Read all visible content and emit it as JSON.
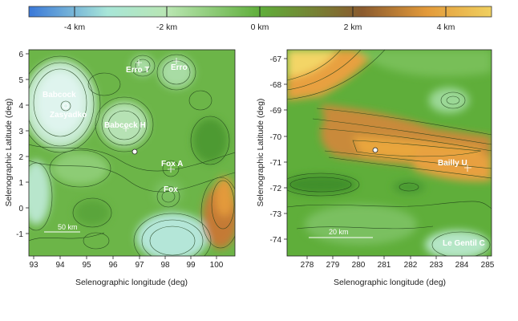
{
  "colorbar": {
    "colors": [
      "#3a78d8",
      "#a8e6d8",
      "#b9e6b2",
      "#5fae3a",
      "#8a5a2e",
      "#e39a3a",
      "#f0d060"
    ],
    "labels": [
      "-4 km",
      "-2 km",
      "0 km",
      "2 km",
      "4 km"
    ]
  },
  "left_map": {
    "xlabel": "Selenographic longitude (deg)",
    "ylabel": "Selenographic Latitude (deg)",
    "xticks": [
      "93",
      "94",
      "95",
      "96",
      "97",
      "98",
      "99",
      "100"
    ],
    "yticks": [
      "6",
      "5",
      "4",
      "3",
      "2",
      "1",
      "0",
      "-1"
    ],
    "features": [
      {
        "name": "Babcock",
        "label": "Babcock"
      },
      {
        "name": "Zasyadko",
        "label": "Zasyadko"
      },
      {
        "name": "Babcock H",
        "label": "Babcock H"
      },
      {
        "name": "Erro T",
        "label": "Erro T"
      },
      {
        "name": "Erro",
        "label": "Erro"
      },
      {
        "name": "Fox A",
        "label": "Fox A"
      },
      {
        "name": "Fox",
        "label": "Fox"
      }
    ],
    "scalebar": "50 km"
  },
  "right_map": {
    "xlabel": "Selenographic longitude (deg)",
    "ylabel": "Selenographic Latitude (deg)",
    "xticks": [
      "278",
      "279",
      "280",
      "281",
      "282",
      "283",
      "284",
      "285"
    ],
    "yticks": [
      "-67",
      "-68",
      "-69",
      "-70",
      "-71",
      "-72",
      "-73",
      "-74"
    ],
    "features": [
      {
        "name": "Bailly U",
        "label": "Bailly U"
      },
      {
        "name": "Le Gentil C",
        "label": "Le Gentil C"
      }
    ],
    "scalebar": "20 km"
  }
}
